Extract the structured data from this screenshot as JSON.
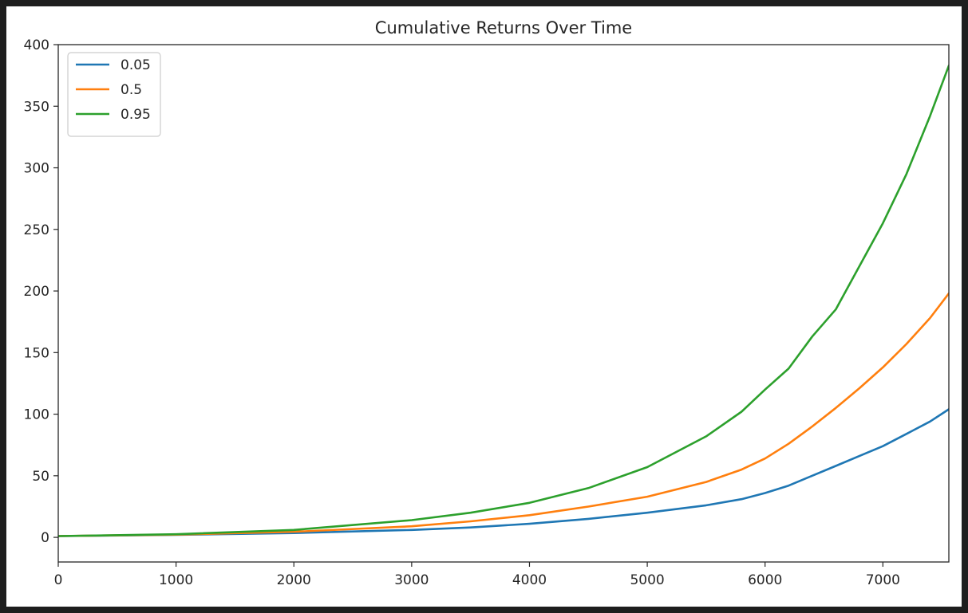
{
  "chart_data": {
    "type": "line",
    "title": "Cumulative Returns Over Time",
    "xlabel": "",
    "ylabel": "",
    "xlim": [
      0,
      7560
    ],
    "ylim": [
      -20,
      400
    ],
    "x_ticks": [
      0,
      1000,
      2000,
      3000,
      4000,
      5000,
      6000,
      7000
    ],
    "y_ticks": [
      0,
      50,
      100,
      150,
      200,
      250,
      300,
      350,
      400
    ],
    "grid": false,
    "legend_position": "top-left",
    "series": [
      {
        "name": "0.05",
        "color": "#1f77b4",
        "x": [
          0,
          1000,
          2000,
          3000,
          3500,
          4000,
          4500,
          5000,
          5500,
          5800,
          6000,
          6200,
          6400,
          6600,
          6800,
          7000,
          7200,
          7400,
          7560
        ],
        "y": [
          1,
          2,
          3.5,
          6,
          8,
          11,
          15,
          20,
          26,
          31,
          36,
          42,
          50,
          58,
          66,
          74,
          84,
          94,
          104
        ]
      },
      {
        "name": "0.5",
        "color": "#ff7f0e",
        "x": [
          0,
          1000,
          2000,
          3000,
          3500,
          4000,
          4500,
          5000,
          5500,
          5800,
          6000,
          6200,
          6400,
          6600,
          6800,
          7000,
          7200,
          7400,
          7560
        ],
        "y": [
          1,
          2.2,
          4.5,
          9,
          13,
          18,
          25,
          33,
          45,
          55,
          64,
          76,
          90,
          105,
          121,
          138,
          157,
          178,
          198
        ]
      },
      {
        "name": "0.95",
        "color": "#2ca02c",
        "x": [
          0,
          1000,
          2000,
          3000,
          3500,
          4000,
          4500,
          5000,
          5500,
          5800,
          6000,
          6200,
          6400,
          6600,
          6800,
          7000,
          7200,
          7400,
          7560
        ],
        "y": [
          1,
          2.5,
          6,
          14,
          20,
          28,
          40,
          57,
          82,
          102,
          120,
          137,
          163,
          185,
          220,
          255,
          295,
          342,
          383
        ]
      }
    ]
  }
}
